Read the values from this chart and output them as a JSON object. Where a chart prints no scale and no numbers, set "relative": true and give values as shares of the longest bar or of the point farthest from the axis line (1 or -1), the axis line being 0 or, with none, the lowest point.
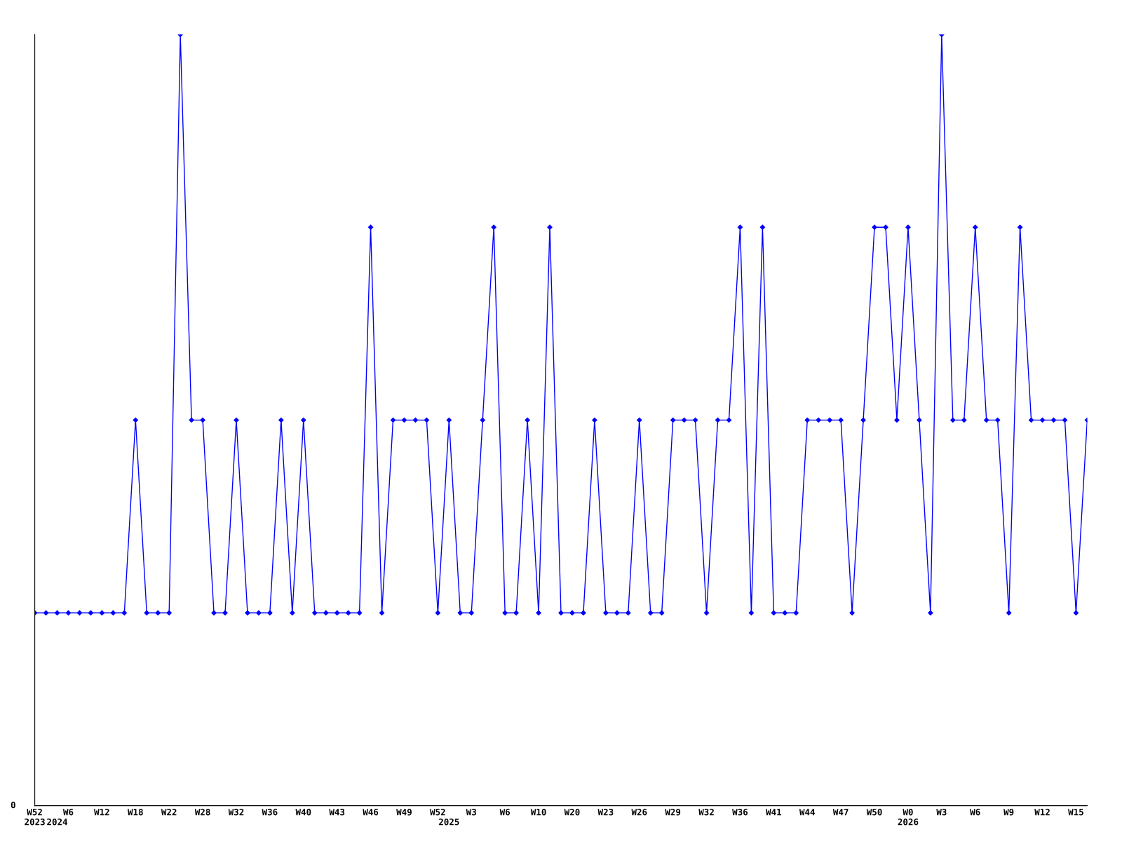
{
  "chart_data": {
    "type": "line",
    "relative": true,
    "color": "#0000ff",
    "marker": "diamond",
    "line_style": "solid",
    "grid": false,
    "legend": false,
    "annotations": [
      "0"
    ],
    "categories": [
      "W52\n2023",
      null,
      "\n2024",
      "W6",
      null,
      null,
      "W12",
      null,
      null,
      "W18",
      null,
      null,
      "W22",
      null,
      null,
      "W28",
      null,
      null,
      "W32",
      null,
      null,
      "W36",
      null,
      null,
      "W40",
      null,
      null,
      "W43",
      null,
      null,
      "W46",
      null,
      null,
      "W49",
      null,
      null,
      "W52",
      "\n2025",
      null,
      "W3",
      null,
      null,
      "W6",
      null,
      null,
      "W10",
      null,
      null,
      "W20",
      null,
      null,
      "W23",
      null,
      null,
      "W26",
      null,
      null,
      "W29",
      null,
      null,
      "W32",
      null,
      null,
      "W36",
      null,
      null,
      "W41",
      null,
      null,
      "W44",
      null,
      null,
      "W47",
      null,
      null,
      "W50",
      null,
      null,
      "W0\n2026",
      null,
      null,
      "W3",
      null,
      null,
      "W6",
      null,
      null,
      "W9",
      null,
      null,
      "W12",
      null,
      null,
      "W15",
      null
    ],
    "values": [
      0.25,
      0.25,
      0.25,
      0.25,
      0.25,
      0.25,
      0.25,
      0.25,
      0.25,
      0.5,
      0.25,
      0.25,
      0.25,
      1,
      0.5,
      0.5,
      0.25,
      0.25,
      0.5,
      0.25,
      0.25,
      0.25,
      0.5,
      0.25,
      0.5,
      0.25,
      0.25,
      0.25,
      0.25,
      0.25,
      0.75,
      0.25,
      0.5,
      0.5,
      0.5,
      0.5,
      0.25,
      0.5,
      0.25,
      0.25,
      0.5,
      0.75,
      0.25,
      0.25,
      0.5,
      0.25,
      0.75,
      0.25,
      0.25,
      0.25,
      0.5,
      0.25,
      0.25,
      0.25,
      0.5,
      0.25,
      0.25,
      0.5,
      0.5,
      0.5,
      0.25,
      0.5,
      0.5,
      0.75,
      0.25,
      0.75,
      0.25,
      0.25,
      0.25,
      0.5,
      0.5,
      0.5,
      0.5,
      0.25,
      0.5,
      0.75,
      0.75,
      0.5,
      0.75,
      0.5,
      0.25,
      1,
      0.5,
      0.5,
      0.75,
      0.5,
      0.5,
      0.25,
      0.75,
      0.5,
      0.5,
      0.5,
      0.5,
      0.25,
      0.5
    ]
  }
}
